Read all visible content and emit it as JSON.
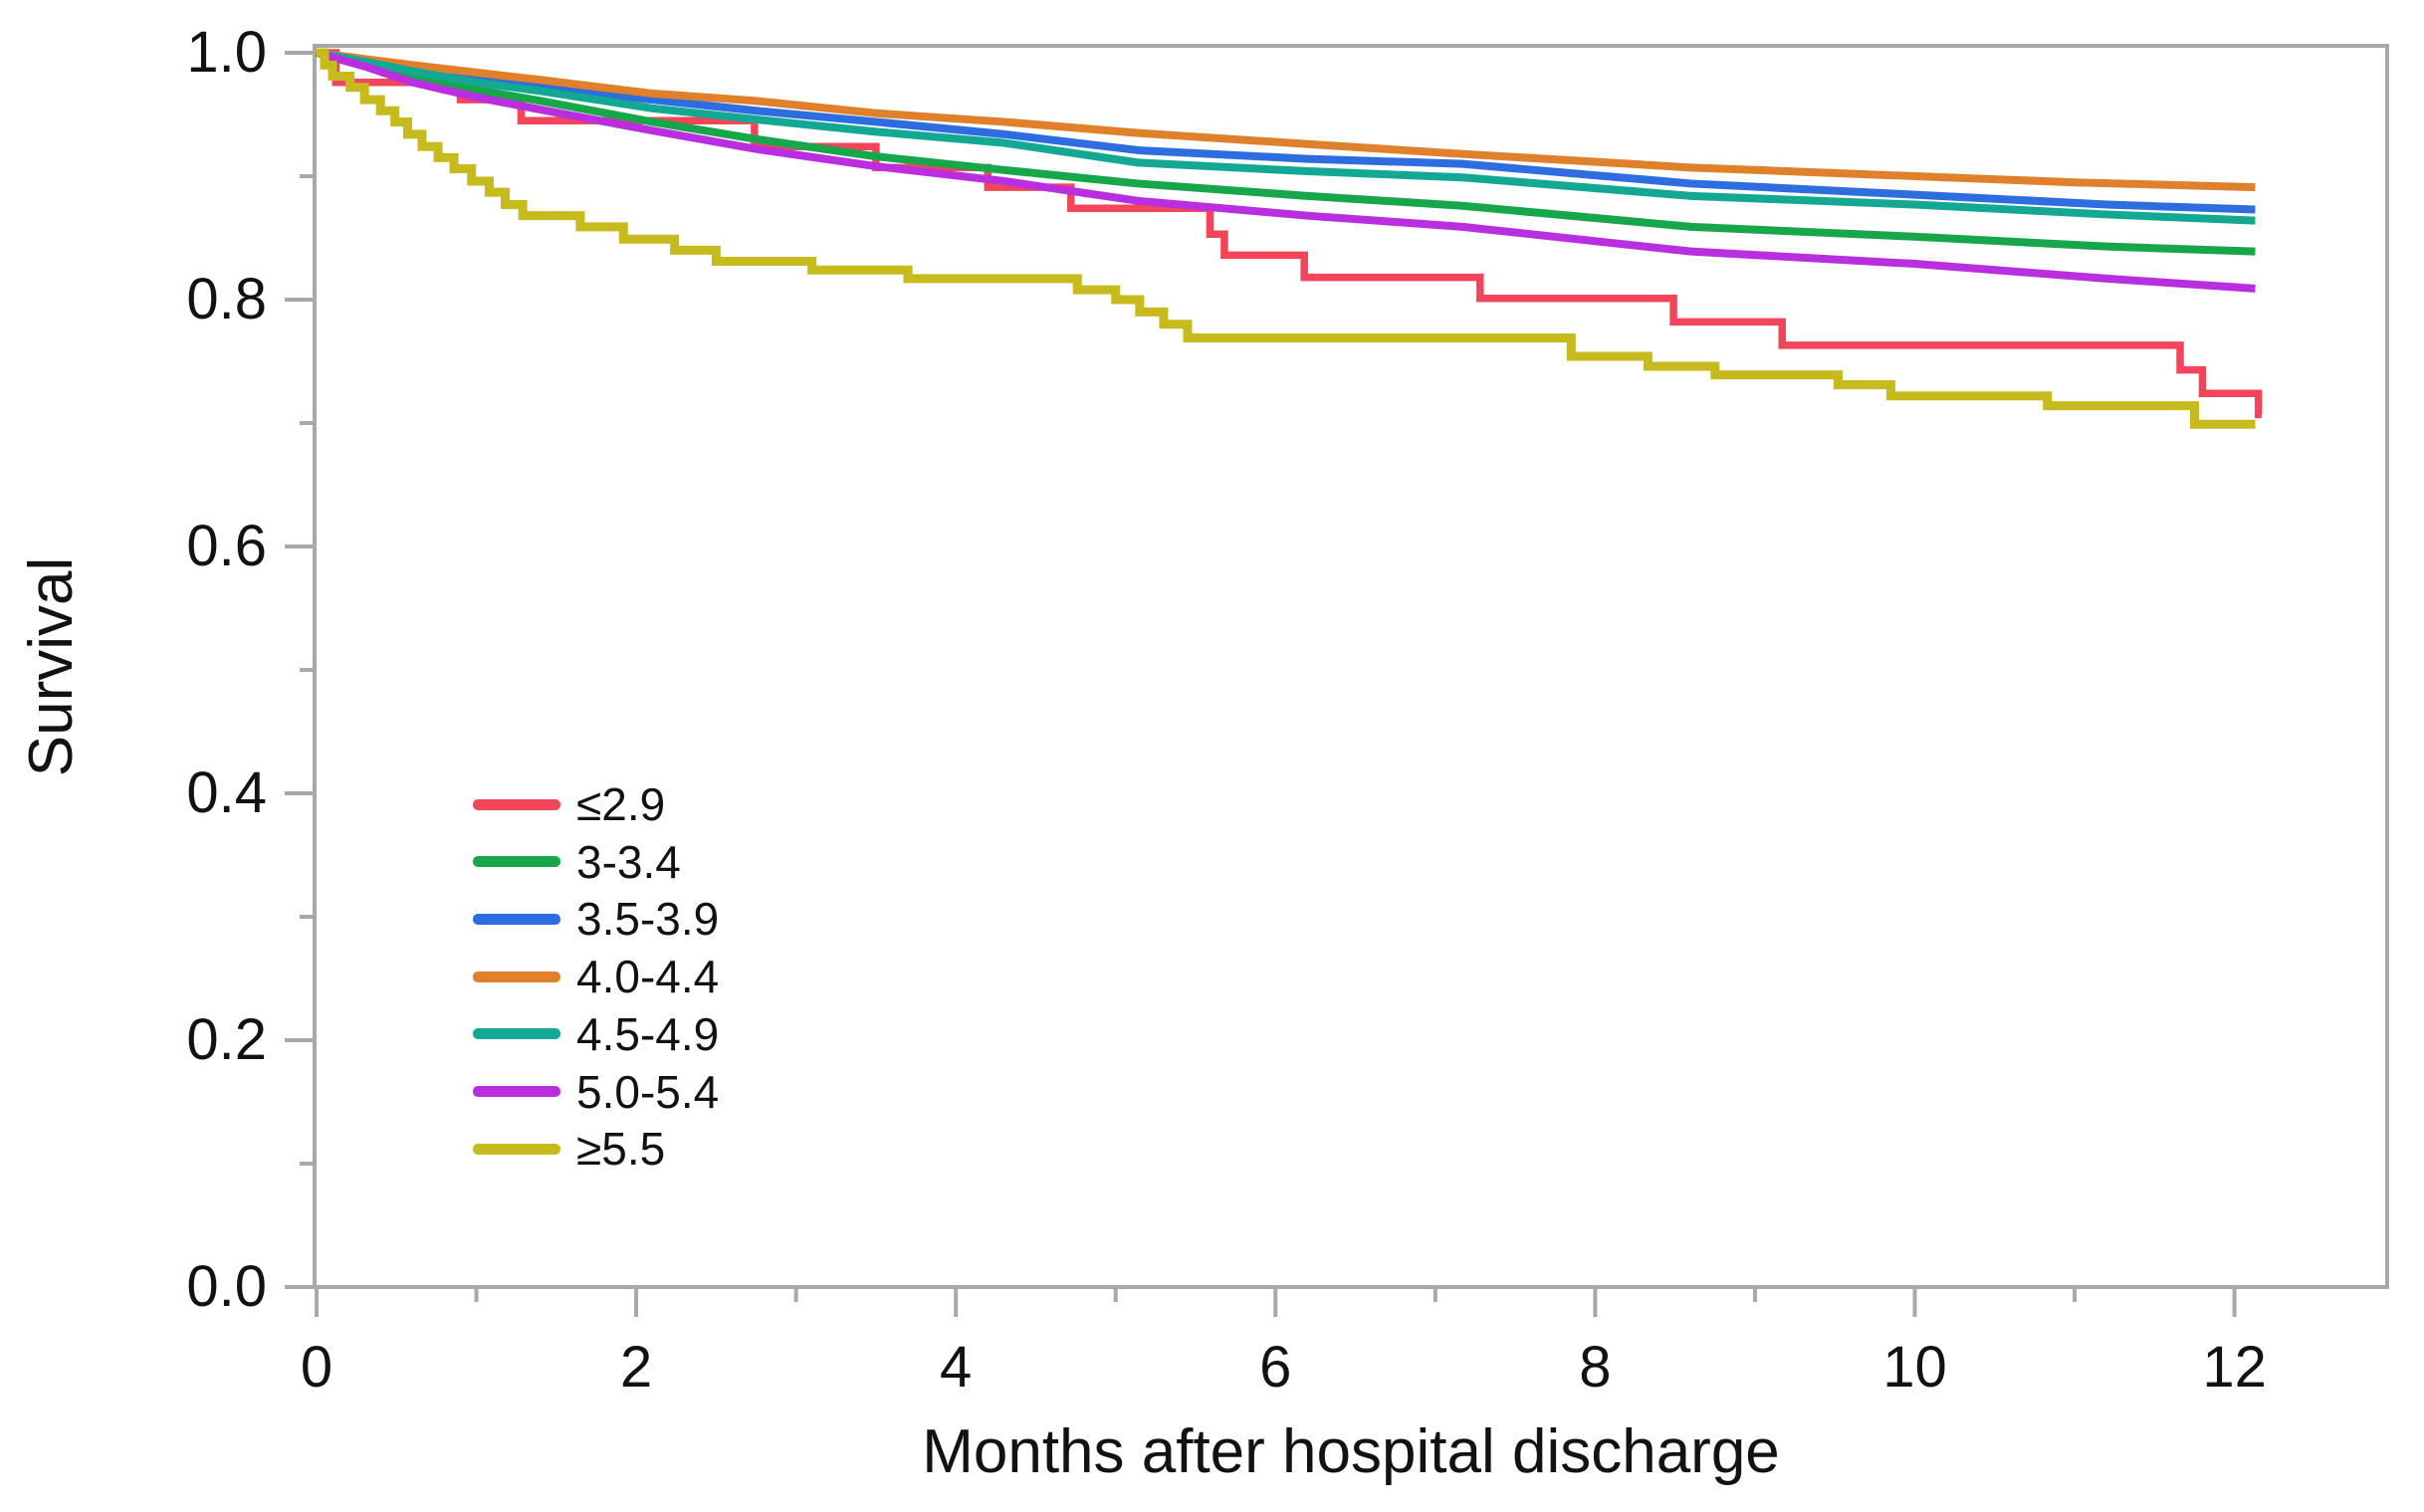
{
  "page": {
    "background": "#ffffff"
  },
  "colors": {
    "red": "#f2455a",
    "green": "#17a74a",
    "blue": "#2e6de0",
    "orange": "#e0802a",
    "teal": "#12a893",
    "magenta": "#b92fe0",
    "yellow": "#c6ba1d",
    "axis": "#a8a8a8",
    "text": "#121212"
  },
  "axes": {
    "x": {
      "title": "Months after hospital discharge",
      "min": 0,
      "max": 12.95,
      "major_ticks": [
        {
          "value": 0,
          "label": "0"
        },
        {
          "value": 2,
          "label": "2"
        },
        {
          "value": 4,
          "label": "4"
        },
        {
          "value": 6,
          "label": "6"
        },
        {
          "value": 8,
          "label": "8"
        },
        {
          "value": 10,
          "label": "10"
        },
        {
          "value": 12,
          "label": "12"
        }
      ],
      "minor_ticks": [
        1,
        3,
        5,
        7,
        9,
        11
      ]
    },
    "y": {
      "title": "Survival",
      "min": 0.0,
      "max": 1.006,
      "major_ticks": [
        {
          "value": 1.0,
          "label": "1.0"
        },
        {
          "value": 0.8,
          "label": "0.8"
        },
        {
          "value": 0.6,
          "label": "0.6"
        },
        {
          "value": 0.4,
          "label": "0.4"
        },
        {
          "value": 0.2,
          "label": "0.2"
        },
        {
          "value": 0.0,
          "label": "0.0"
        }
      ],
      "minor_ticks": [
        0.9,
        0.7,
        0.5,
        0.3,
        0.1
      ]
    }
  },
  "legend": {
    "items": [
      {
        "label": "≤2.9",
        "color": "#f2455a"
      },
      {
        "label": "3-3.4",
        "color": "#17a74a"
      },
      {
        "label": "3.5-3.9",
        "color": "#2e6de0"
      },
      {
        "label": "4.0-4.4",
        "color": "#e0802a"
      },
      {
        "label": "4.5-4.9",
        "color": "#12a893"
      },
      {
        "label": "5.0-5.4",
        "color": "#b92fe0"
      },
      {
        "label": "≥5.5",
        "color": "#c6ba1d"
      }
    ]
  },
  "chart_data": {
    "type": "line",
    "subtype": "kaplan_meier_step_survival",
    "title": "",
    "xlabel": "Months after hospital discharge",
    "ylabel": "Survival",
    "xlim": [
      0,
      12.95
    ],
    "ylim": [
      0,
      1.006
    ],
    "x_units": "months",
    "grid": false,
    "legend_position": "inside-left-lower-middle",
    "series": [
      {
        "name": "≤2.9",
        "color": "#f2455a",
        "style": "step",
        "width": 7.5,
        "steps": [
          [
            1.0,
            0.12
          ],
          [
            0.976,
            0.9
          ],
          [
            0.962,
            1.28
          ],
          [
            0.945,
            2.74
          ],
          [
            0.924,
            3.5
          ],
          [
            0.907,
            4.2
          ],
          [
            0.891,
            4.72
          ],
          [
            0.874,
            5.59
          ],
          [
            0.853,
            5.68
          ],
          [
            0.836,
            6.18
          ],
          [
            0.818,
            7.28
          ],
          [
            0.801,
            8.49
          ],
          [
            0.782,
            9.17
          ],
          [
            0.763,
            11.66
          ],
          [
            0.743,
            11.8
          ],
          [
            0.724,
            12.15
          ],
          [
            0.707,
            12.17
          ]
        ]
      },
      {
        "name": "3-3.4",
        "color": "#17a74a",
        "style": "smooth",
        "width": 8,
        "points": [
          [
            0,
            1.0
          ],
          [
            0.3,
            0.991
          ],
          [
            0.6,
            0.981
          ],
          [
            1.0,
            0.97
          ],
          [
            1.4,
            0.961
          ],
          [
            2.1,
            0.944
          ],
          [
            2.75,
            0.93
          ],
          [
            3.5,
            0.916
          ],
          [
            4.3,
            0.905
          ],
          [
            5.14,
            0.894
          ],
          [
            6.2,
            0.884
          ],
          [
            7.17,
            0.876
          ],
          [
            8.6,
            0.859
          ],
          [
            10.0,
            0.851
          ],
          [
            11.2,
            0.843
          ],
          [
            12.13,
            0.839
          ]
        ]
      },
      {
        "name": "3.5-3.9",
        "color": "#2e6de0",
        "style": "smooth",
        "width": 8,
        "points": [
          [
            0,
            1.0
          ],
          [
            0.3,
            0.994
          ],
          [
            0.6,
            0.988
          ],
          [
            1.0,
            0.979
          ],
          [
            1.4,
            0.973
          ],
          [
            2.1,
            0.962
          ],
          [
            2.75,
            0.953
          ],
          [
            3.5,
            0.944
          ],
          [
            4.3,
            0.934
          ],
          [
            5.14,
            0.921
          ],
          [
            6.2,
            0.914
          ],
          [
            7.17,
            0.91
          ],
          [
            8.6,
            0.894
          ],
          [
            10.0,
            0.885
          ],
          [
            11.2,
            0.877
          ],
          [
            12.13,
            0.873
          ]
        ]
      },
      {
        "name": "4.0-4.4",
        "color": "#e0802a",
        "style": "smooth",
        "width": 8,
        "points": [
          [
            0,
            1.0
          ],
          [
            0.3,
            0.995
          ],
          [
            0.6,
            0.99
          ],
          [
            1.0,
            0.984
          ],
          [
            1.4,
            0.978
          ],
          [
            2.1,
            0.967
          ],
          [
            2.75,
            0.961
          ],
          [
            3.5,
            0.951
          ],
          [
            4.3,
            0.944
          ],
          [
            5.14,
            0.935
          ],
          [
            6.2,
            0.926
          ],
          [
            7.17,
            0.918
          ],
          [
            8.6,
            0.907
          ],
          [
            10.0,
            0.9
          ],
          [
            11.0,
            0.895
          ],
          [
            12.13,
            0.891
          ]
        ]
      },
      {
        "name": "4.5-4.9",
        "color": "#12a893",
        "style": "smooth",
        "width": 8,
        "points": [
          [
            0,
            1.0
          ],
          [
            0.3,
            0.993
          ],
          [
            0.6,
            0.985
          ],
          [
            1.0,
            0.976
          ],
          [
            1.4,
            0.969
          ],
          [
            2.1,
            0.955
          ],
          [
            2.75,
            0.946
          ],
          [
            3.5,
            0.936
          ],
          [
            4.3,
            0.927
          ],
          [
            5.14,
            0.911
          ],
          [
            6.2,
            0.904
          ],
          [
            7.17,
            0.899
          ],
          [
            8.6,
            0.884
          ],
          [
            10.0,
            0.877
          ],
          [
            11.2,
            0.869
          ],
          [
            12.13,
            0.864
          ]
        ]
      },
      {
        "name": "5.0-5.4",
        "color": "#b92fe0",
        "style": "smooth",
        "width": 8,
        "points": [
          [
            0,
            1.0
          ],
          [
            0.3,
            0.989
          ],
          [
            0.6,
            0.976
          ],
          [
            1.0,
            0.964
          ],
          [
            1.4,
            0.954
          ],
          [
            2.1,
            0.937
          ],
          [
            2.75,
            0.922
          ],
          [
            3.5,
            0.908
          ],
          [
            4.3,
            0.896
          ],
          [
            5.14,
            0.88
          ],
          [
            6.2,
            0.868
          ],
          [
            7.17,
            0.859
          ],
          [
            8.6,
            0.839
          ],
          [
            10.0,
            0.829
          ],
          [
            11.2,
            0.817
          ],
          [
            12.13,
            0.809
          ]
        ]
      },
      {
        "name": "≥5.5",
        "color": "#c6ba1d",
        "style": "step",
        "width": 9,
        "steps": [
          [
            1.0,
            0.05
          ],
          [
            0.99,
            0.1
          ],
          [
            0.981,
            0.21
          ],
          [
            0.972,
            0.3
          ],
          [
            0.962,
            0.4
          ],
          [
            0.953,
            0.49
          ],
          [
            0.944,
            0.57
          ],
          [
            0.934,
            0.66
          ],
          [
            0.924,
            0.76
          ],
          [
            0.915,
            0.86
          ],
          [
            0.906,
            0.97
          ],
          [
            0.896,
            1.08
          ],
          [
            0.887,
            1.18
          ],
          [
            0.877,
            1.29
          ],
          [
            0.868,
            1.65
          ],
          [
            0.859,
            1.92
          ],
          [
            0.849,
            2.24
          ],
          [
            0.84,
            2.5
          ],
          [
            0.831,
            3.1
          ],
          [
            0.824,
            3.7
          ],
          [
            0.817,
            4.76
          ],
          [
            0.808,
            5.0
          ],
          [
            0.8,
            5.15
          ],
          [
            0.79,
            5.3
          ],
          [
            0.78,
            5.45
          ],
          [
            0.769,
            7.85
          ],
          [
            0.754,
            8.33
          ],
          [
            0.746,
            8.75
          ],
          [
            0.739,
            9.52
          ],
          [
            0.731,
            9.85
          ],
          [
            0.722,
            10.83
          ],
          [
            0.714,
            11.75
          ],
          [
            0.699,
            12.13
          ]
        ]
      }
    ]
  }
}
